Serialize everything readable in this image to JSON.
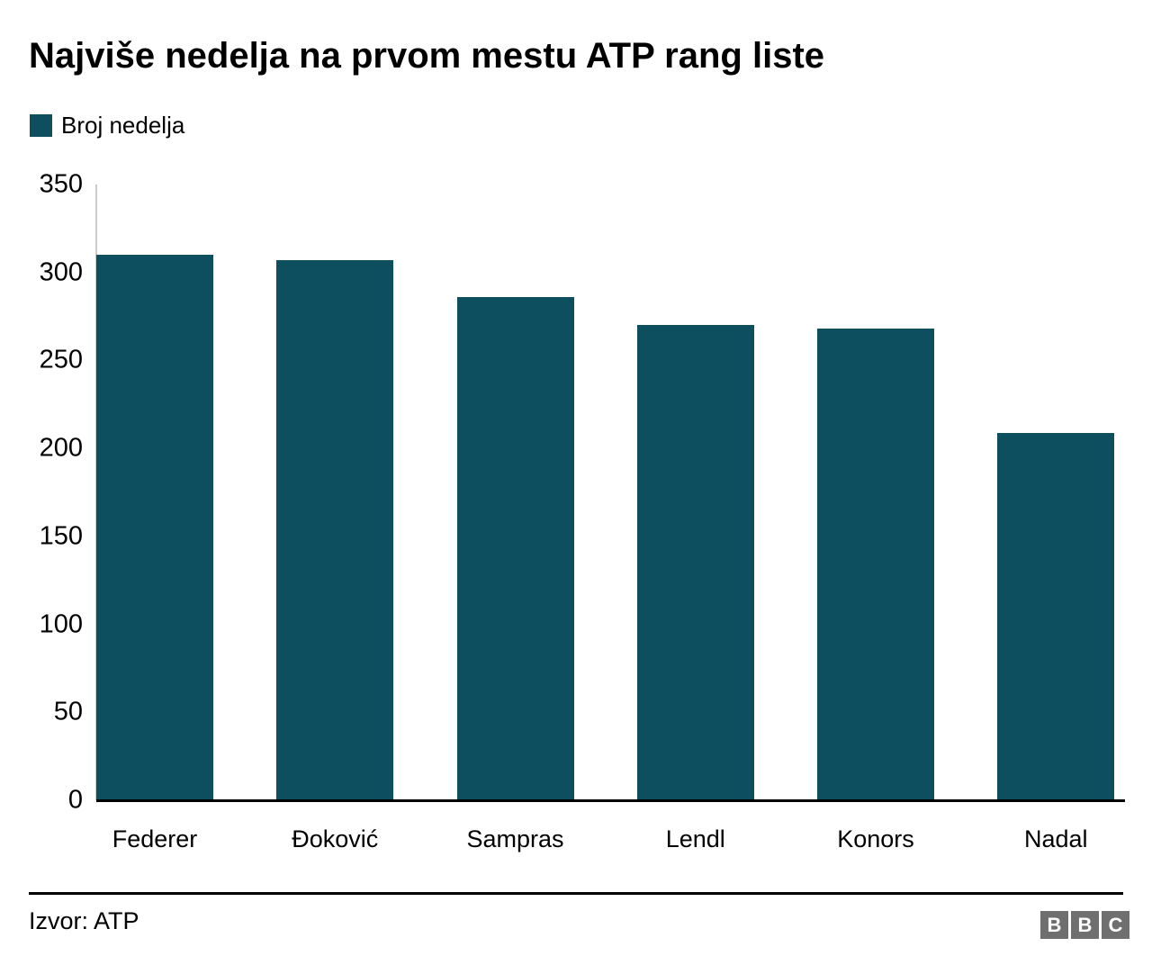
{
  "title": "Najviše nedelja na prvom mestu ATP rang liste",
  "legend": {
    "label": "Broj nedelja"
  },
  "chart_data": {
    "type": "bar",
    "title": "Najviše nedelja na prvom mestu ATP rang liste",
    "series_name": "Broj nedelja",
    "categories": [
      "Federer",
      "Đoković",
      "Sampras",
      "Lendl",
      "Konors",
      "Nadal"
    ],
    "values": [
      310,
      307,
      286,
      270,
      268,
      209
    ],
    "xlabel": "",
    "ylabel": "",
    "ylim": [
      0,
      350
    ],
    "yticks": [
      0,
      50,
      100,
      150,
      200,
      250,
      300,
      350
    ],
    "grid": false,
    "legend_position": "top-left",
    "bar_color": "#0e4f5f"
  },
  "footer": {
    "source": "Izvor: ATP",
    "logo_letters": [
      "B",
      "B",
      "C"
    ]
  },
  "colors": {
    "bar": "#0e4f5f",
    "axis_line": "#cccccc",
    "baseline": "#000000",
    "text": "#000000",
    "background": "#ffffff",
    "logo_block": "#6f6f6f",
    "logo_letter": "#ffffff"
  }
}
